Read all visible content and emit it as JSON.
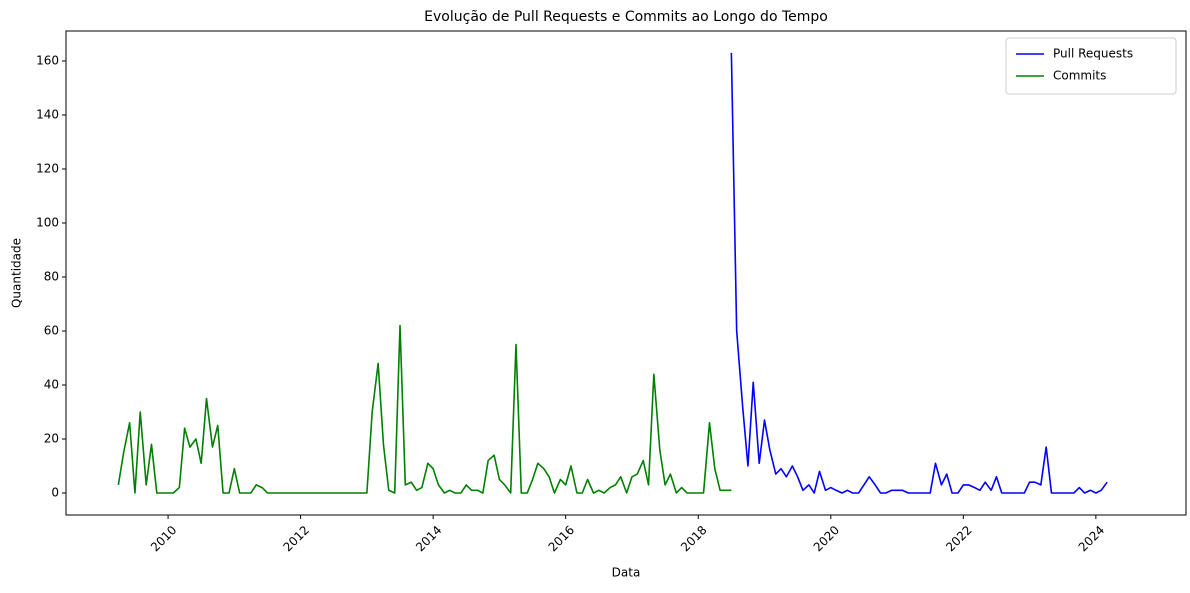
{
  "chart_data": {
    "type": "line",
    "title": "Evolução de Pull Requests e Commits ao Longo do Tempo",
    "xlabel": "Data",
    "ylabel": "Quantidade",
    "xlim": [
      2008.46,
      2025.36
    ],
    "xticks": [
      2010,
      2012,
      2014,
      2016,
      2018,
      2020,
      2022,
      2024
    ],
    "ylim": [
      -8.15,
      171.1
    ],
    "yticks": [
      0,
      20,
      40,
      60,
      80,
      100,
      120,
      140,
      160
    ],
    "legend": "upper right",
    "series": [
      {
        "name": "Pull Requests",
        "color": "#0000ff",
        "x": [
          2018.5,
          2018.58,
          2018.67,
          2018.75,
          2018.83,
          2018.92,
          2019,
          2019.08,
          2019.17,
          2019.25,
          2019.33,
          2019.42,
          2019.5,
          2019.58,
          2019.67,
          2019.75,
          2019.83,
          2019.92,
          2020,
          2020.08,
          2020.17,
          2020.25,
          2020.33,
          2020.42,
          2020.5,
          2020.58,
          2020.67,
          2020.75,
          2020.83,
          2020.92,
          2021,
          2021.08,
          2021.17,
          2021.25,
          2021.33,
          2021.42,
          2021.5,
          2021.58,
          2021.67,
          2021.75,
          2021.83,
          2021.92,
          2022,
          2022.08,
          2022.17,
          2022.25,
          2022.33,
          2022.42,
          2022.5,
          2022.58,
          2022.67,
          2022.75,
          2022.83,
          2022.92,
          2023,
          2023.08,
          2023.17,
          2023.25,
          2023.33,
          2023.42,
          2023.5,
          2023.58,
          2023.67,
          2023.75,
          2023.83,
          2023.92,
          2024,
          2024.08,
          2024.17
        ],
        "values": [
          163,
          60,
          32,
          10,
          41,
          11,
          27,
          16,
          7,
          9,
          6,
          10,
          6,
          1,
          3,
          0,
          8,
          1,
          2,
          1,
          0,
          1,
          0,
          0,
          3,
          6,
          3,
          0,
          0,
          1,
          1,
          1,
          0,
          0,
          0,
          0,
          0,
          11,
          3,
          7,
          0,
          0,
          3,
          3,
          2,
          1,
          4,
          1,
          6,
          0,
          0,
          0,
          0,
          0,
          4,
          4,
          3,
          17,
          0,
          0,
          0,
          0,
          0,
          2,
          0,
          1,
          0,
          1,
          4
        ]
      },
      {
        "name": "Commits",
        "color": "#008000",
        "x": [
          2009.25,
          2009.33,
          2009.42,
          2009.5,
          2009.58,
          2009.67,
          2009.75,
          2009.83,
          2009.92,
          2010,
          2010.08,
          2010.17,
          2010.25,
          2010.33,
          2010.42,
          2010.5,
          2010.58,
          2010.67,
          2010.75,
          2010.83,
          2010.92,
          2011,
          2011.08,
          2011.17,
          2011.25,
          2011.33,
          2011.42,
          2011.5,
          2011.58,
          2011.67,
          2011.75,
          2011.83,
          2011.92,
          2012,
          2012.08,
          2012.17,
          2012.25,
          2012.33,
          2012.42,
          2012.5,
          2012.58,
          2012.67,
          2012.75,
          2012.83,
          2012.92,
          2013,
          2013.08,
          2013.17,
          2013.25,
          2013.33,
          2013.42,
          2013.5,
          2013.58,
          2013.67,
          2013.75,
          2013.83,
          2013.92,
          2014,
          2014.08,
          2014.17,
          2014.25,
          2014.33,
          2014.42,
          2014.5,
          2014.58,
          2014.67,
          2014.75,
          2014.83,
          2014.92,
          2015,
          2015.08,
          2015.17,
          2015.25,
          2015.33,
          2015.42,
          2015.5,
          2015.58,
          2015.67,
          2015.75,
          2015.83,
          2015.92,
          2016,
          2016.08,
          2016.17,
          2016.25,
          2016.33,
          2016.42,
          2016.5,
          2016.58,
          2016.67,
          2016.75,
          2016.83,
          2016.92,
          2017,
          2017.08,
          2017.17,
          2017.25,
          2017.33,
          2017.42,
          2017.5,
          2017.58,
          2017.67,
          2017.75,
          2017.83,
          2017.92,
          2018,
          2018.08,
          2018.17,
          2018.25,
          2018.33,
          2018.42,
          2018.5
        ],
        "values": [
          3,
          15,
          26,
          0,
          30,
          3,
          18,
          0,
          0,
          0,
          0,
          2,
          24,
          17,
          20,
          11,
          35,
          17,
          25,
          0,
          0,
          9,
          0,
          0,
          0,
          3,
          2,
          0,
          0,
          0,
          0,
          0,
          0,
          0,
          0,
          0,
          0,
          0,
          0,
          0,
          0,
          0,
          0,
          0,
          0,
          0,
          30,
          48,
          18,
          1,
          0,
          62,
          3,
          4,
          1,
          2,
          11,
          9,
          3,
          0,
          1,
          0,
          0,
          3,
          1,
          1,
          0,
          12,
          14,
          5,
          3,
          0,
          55,
          0,
          0,
          5,
          11,
          9,
          6,
          0,
          5,
          3,
          10,
          0,
          0,
          5,
          0,
          1,
          0,
          2,
          3,
          6,
          0,
          6,
          7,
          12,
          3,
          44,
          16,
          3,
          7,
          0,
          2,
          0,
          0,
          0,
          0,
          26,
          9,
          1,
          1,
          1
        ]
      }
    ]
  }
}
